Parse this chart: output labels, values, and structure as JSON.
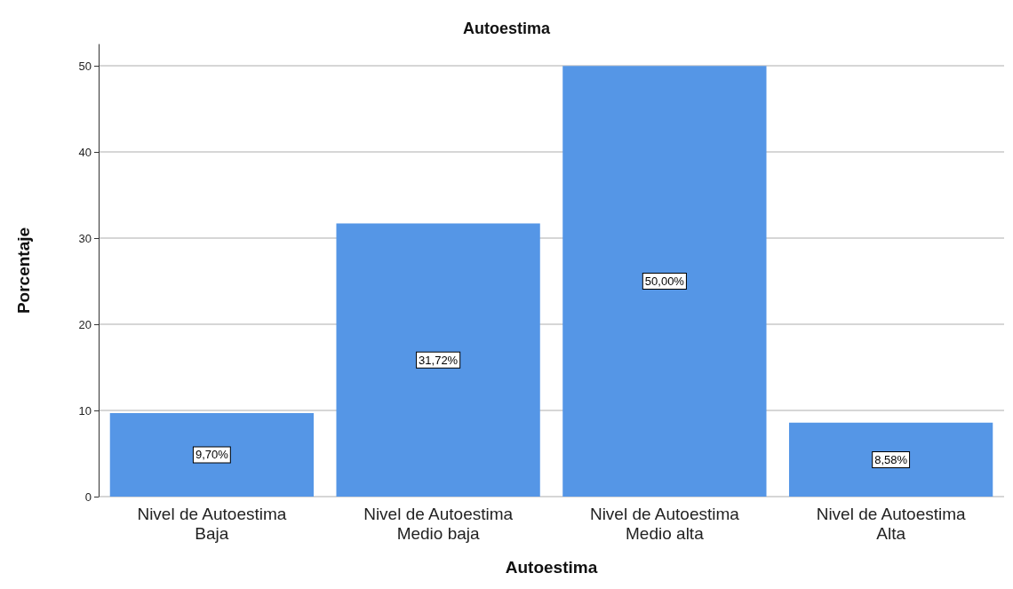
{
  "chart_data": {
    "type": "bar",
    "title": "Autoestima",
    "xlabel": "Autoestima",
    "ylabel": "Porcentaje",
    "categories": [
      "Nivel de Autoestima\nBaja",
      "Nivel de Autoestima\nMedio baja",
      "Nivel de Autoestima\nMedio alta",
      "Nivel de Autoestima\nAlta"
    ],
    "values": [
      9.7,
      31.72,
      50.0,
      8.58
    ],
    "value_labels": [
      "9,70%",
      "31,72%",
      "50,00%",
      "8,58%"
    ],
    "color": "#5596e6",
    "ylim": [
      0,
      52.5
    ],
    "yticks": [
      0,
      10,
      20,
      30,
      40,
      50
    ],
    "grid": "y"
  }
}
